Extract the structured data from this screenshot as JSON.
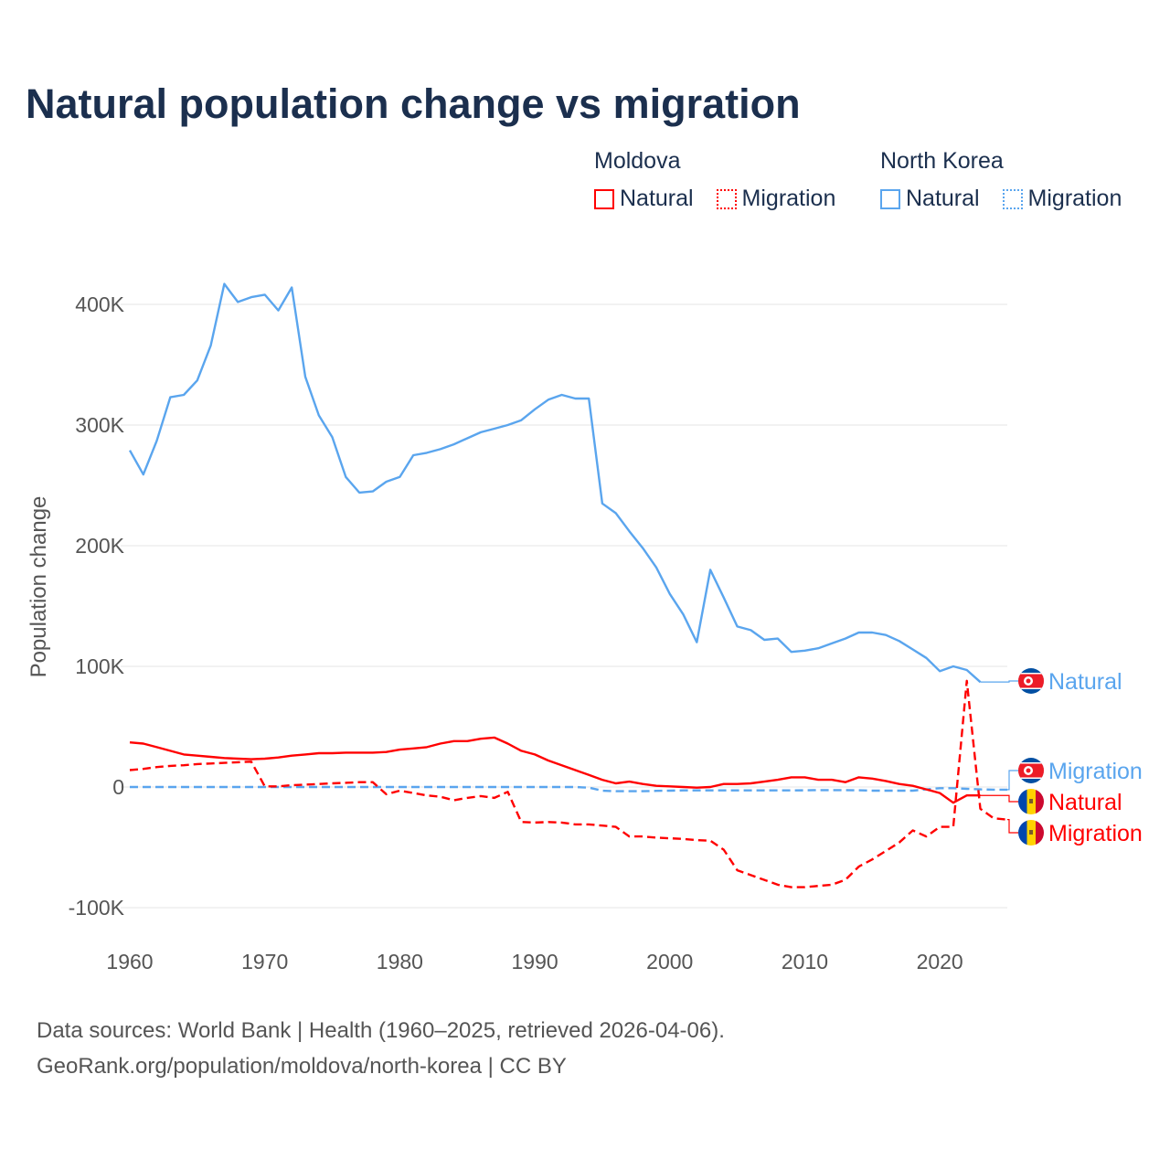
{
  "title": "Natural population change vs migration",
  "legend": {
    "groups": [
      {
        "name": "Moldova",
        "items": [
          {
            "label": "Natural",
            "style": "solid"
          },
          {
            "label": "Migration",
            "style": "dotted"
          }
        ],
        "color": "#ff0000"
      },
      {
        "name": "North Korea",
        "items": [
          {
            "label": "Natural",
            "style": "solid"
          },
          {
            "label": "Migration",
            "style": "dotted"
          }
        ],
        "color": "#5aa5ee"
      }
    ]
  },
  "footer": {
    "line1": "Data sources: World Bank | Health (1960–2025, retrieved 2026-04-06).",
    "line2": "GeoRank.org/population/moldova/north-korea | CC BY"
  },
  "chart_data": {
    "type": "line",
    "title": "Natural population change vs migration",
    "xlabel": "",
    "ylabel": "Population change",
    "xlim": [
      1960,
      2025
    ],
    "ylim": [
      -100000,
      400000
    ],
    "xticks": [
      1960,
      1970,
      1980,
      1990,
      2000,
      2010,
      2020
    ],
    "xtick_labels": [
      "1960",
      "1970",
      "1980",
      "1990",
      "2000",
      "2010",
      "2020"
    ],
    "yticks": [
      -100000,
      0,
      100000,
      200000,
      300000,
      400000
    ],
    "ytick_labels": [
      "-100K",
      "0",
      "100K",
      "200K",
      "300K",
      "400K"
    ],
    "grid": true,
    "legend_position": "top-right",
    "series": [
      {
        "name": "North Korea Natural",
        "end_label": "Natural",
        "country": "North Korea",
        "color": "#5aa5ee",
        "dash": "solid",
        "start_year": 1960,
        "values": [
          279,
          259,
          287,
          323,
          325,
          337,
          366,
          417,
          402,
          406,
          408,
          395,
          414,
          340,
          308,
          290,
          257,
          244,
          245,
          253,
          257,
          275,
          277,
          280,
          284,
          289,
          294,
          297,
          300,
          304,
          313,
          321,
          325,
          322,
          322,
          235,
          227,
          212,
          198,
          182,
          160,
          143,
          120,
          180,
          157,
          133,
          130,
          122,
          123,
          112,
          113,
          115,
          119,
          123,
          128,
          128,
          126,
          121,
          114,
          107,
          96,
          100,
          97,
          87
        ]
      },
      {
        "name": "North Korea Migration",
        "end_label": "Migration",
        "country": "North Korea",
        "color": "#5aa5ee",
        "dash": "dashed",
        "start_year": 1960,
        "values": [
          0,
          0,
          0,
          0,
          0,
          0,
          0,
          0,
          0,
          0,
          0,
          0,
          0,
          0,
          0,
          0,
          0,
          0,
          0,
          0,
          0,
          0,
          0,
          0,
          0,
          0,
          0,
          0,
          0,
          0,
          0,
          0,
          0,
          0,
          -0.5,
          -3,
          -3.5,
          -3.5,
          -3.5,
          -3.2,
          -3,
          -2.8,
          -2.8,
          -2.8,
          -2.8,
          -2.8,
          -2.8,
          -2.8,
          -2.8,
          -2.8,
          -2.7,
          -2.6,
          -2.6,
          -2.6,
          -2.7,
          -3,
          -3,
          -3,
          -3,
          -2,
          -1,
          -1,
          -1.5,
          -2,
          -2.2,
          -2.2
        ]
      },
      {
        "name": "Moldova Natural",
        "end_label": "Natural",
        "country": "Moldova",
        "color": "#ff0000",
        "dash": "solid",
        "start_year": 1960,
        "values": [
          37,
          36,
          33,
          30,
          27,
          26,
          25,
          24,
          23.5,
          23,
          23.5,
          24.5,
          26,
          27,
          28,
          28,
          28.5,
          28.5,
          28.5,
          29,
          31,
          32,
          33,
          36,
          38,
          38,
          40,
          41,
          36,
          30,
          27,
          22,
          18,
          14,
          10,
          6,
          3,
          4.5,
          2.5,
          1,
          0.5,
          0,
          -0.5,
          0,
          2.5,
          2.5,
          3,
          4.5,
          6,
          8,
          8,
          6,
          6,
          4,
          8,
          7,
          5,
          2.5,
          1,
          -2,
          -5,
          -13,
          -7,
          -7
        ]
      },
      {
        "name": "Moldova Migration",
        "end_label": "Migration",
        "country": "Moldova",
        "color": "#ff0000",
        "dash": "dashed",
        "start_year": 1960,
        "values": [
          14,
          15,
          16.5,
          17.5,
          18,
          19,
          19.5,
          20,
          20.5,
          21,
          0.5,
          0.5,
          1.5,
          2,
          2.5,
          3,
          3.5,
          4,
          4,
          -6,
          -3,
          -5,
          -7,
          -8,
          -11,
          -9,
          -7.5,
          -9,
          -4,
          -29,
          -29.5,
          -29,
          -29.5,
          -31,
          -31,
          -32,
          -33,
          -41,
          -41,
          -42,
          -42.5,
          -43,
          -44,
          -44.5,
          -52,
          -69,
          -73,
          -77,
          -81,
          -83,
          -83,
          -82,
          -81,
          -77,
          -66,
          -60,
          -53,
          -46,
          -36,
          -41,
          -33,
          -33,
          88,
          -18,
          -26,
          -27
        ]
      }
    ],
    "value_unit": "thousands"
  }
}
